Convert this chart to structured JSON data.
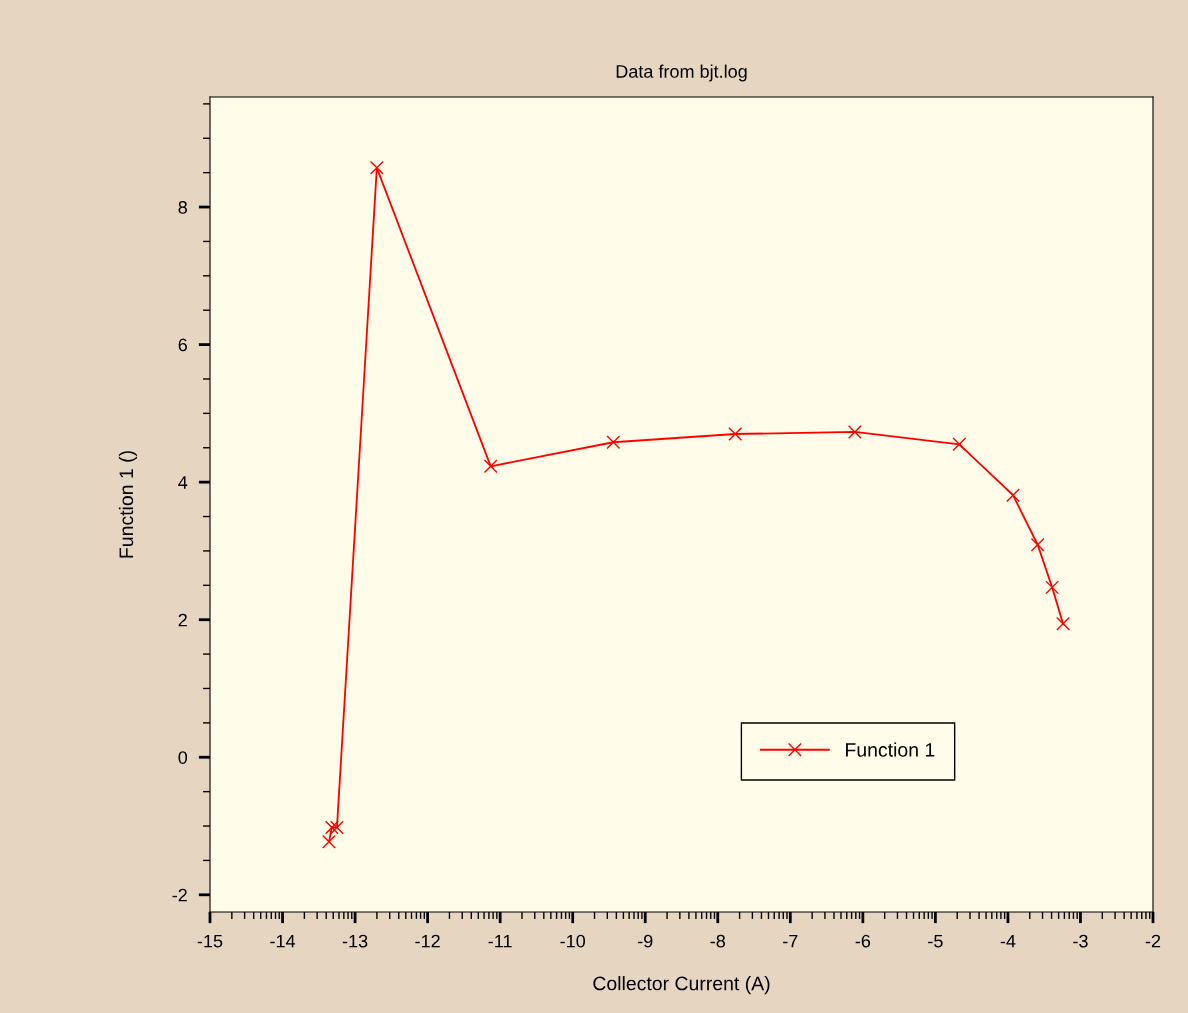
{
  "chart_data": {
    "type": "line",
    "subtitle": "Data from bjt.log",
    "xlabel": "Collector Current (A)",
    "ylabel": "Function 1 ()",
    "series": [
      {
        "name": "Function 1",
        "color": "#ff0000",
        "x": [
          -13.36,
          -13.32,
          -13.25,
          -12.7,
          -11.13,
          -9.44,
          -7.76,
          -6.11,
          -4.67,
          -3.93,
          -3.59,
          -3.39,
          -3.24
        ],
        "values": [
          -1.23,
          -1.02,
          -1.02,
          8.57,
          4.23,
          4.58,
          4.7,
          4.73,
          4.55,
          3.81,
          3.09,
          2.47,
          1.94
        ]
      }
    ],
    "xlim": [
      -15,
      -2
    ],
    "xticks": [
      -15,
      -14,
      -13,
      -12,
      -11,
      -10,
      -9,
      -8,
      -7,
      -6,
      -5,
      -4,
      -3,
      -2
    ],
    "ylim": [
      -2.25,
      9.6
    ],
    "yticks": [
      -2,
      0,
      2,
      4,
      6,
      8
    ],
    "marker": "cross",
    "line_style": "solid",
    "grid": false,
    "legend": "bottom right"
  }
}
